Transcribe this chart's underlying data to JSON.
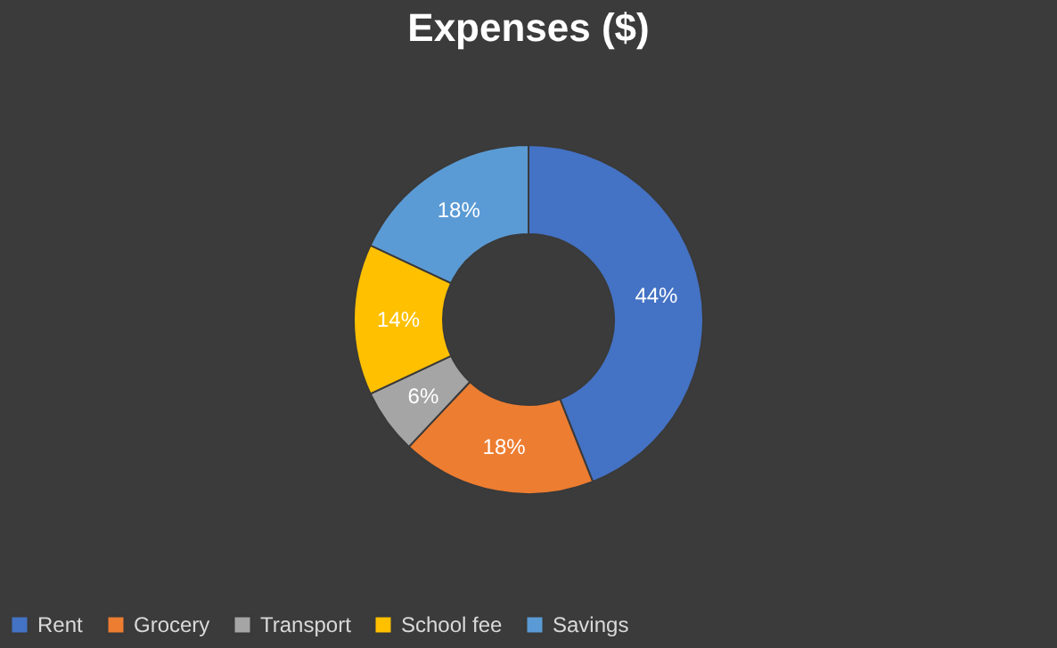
{
  "chart_data": {
    "type": "donut",
    "title": "Expenses ($)",
    "categories": [
      "Rent",
      "Grocery",
      "Transport",
      "School fee",
      "Savings"
    ],
    "values": [
      44,
      18,
      6,
      14,
      18
    ],
    "colors": [
      "#4472c4",
      "#ed7d31",
      "#a5a5a5",
      "#ffc000",
      "#5b9bd5"
    ],
    "value_labels": [
      "44%",
      "18%",
      "6%",
      "14%",
      "18%"
    ],
    "legend": "bottom"
  }
}
